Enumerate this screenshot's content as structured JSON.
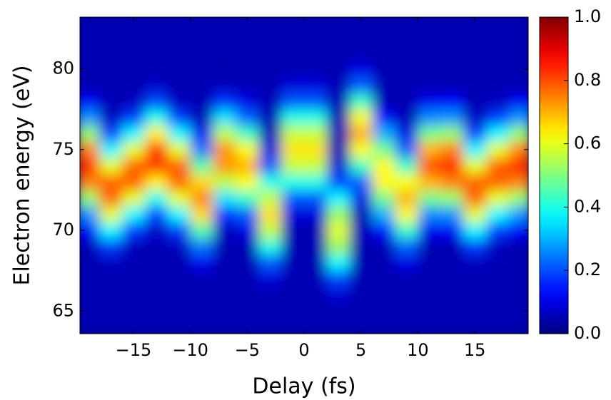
{
  "chart_data": {
    "type": "heatmap",
    "xlabel": "Delay (fs)",
    "ylabel": "Electron energy (eV)",
    "colormap": "jet",
    "x": [
      -19,
      -17,
      -15,
      -13,
      -11,
      -9,
      -7,
      -5,
      -3,
      -1,
      1,
      3,
      5,
      7,
      9,
      11,
      13,
      15,
      17,
      19
    ],
    "y": [
      64,
      65,
      66,
      67,
      68,
      69,
      70,
      71,
      72,
      73,
      74,
      75,
      76,
      77,
      78,
      79,
      80,
      81,
      82,
      83
    ],
    "values": [
      [
        0.05,
        0.05,
        0.05,
        0.05,
        0.05,
        0.05,
        0.05,
        0.05,
        0.05,
        0.05,
        0.05,
        0.05,
        0.05,
        0.05,
        0.05,
        0.05,
        0.05,
        0.05,
        0.05,
        0.05
      ],
      [
        0.05,
        0.05,
        0.05,
        0.05,
        0.05,
        0.05,
        0.05,
        0.05,
        0.05,
        0.05,
        0.05,
        0.05,
        0.05,
        0.05,
        0.05,
        0.05,
        0.05,
        0.05,
        0.05,
        0.05
      ],
      [
        0.05,
        0.05,
        0.05,
        0.05,
        0.05,
        0.05,
        0.05,
        0.05,
        0.05,
        0.05,
        0.05,
        0.08,
        0.05,
        0.05,
        0.05,
        0.05,
        0.05,
        0.05,
        0.05,
        0.05
      ],
      [
        0.05,
        0.05,
        0.05,
        0.05,
        0.05,
        0.05,
        0.05,
        0.05,
        0.09,
        0.05,
        0.05,
        0.19,
        0.05,
        0.05,
        0.05,
        0.05,
        0.05,
        0.05,
        0.05,
        0.05
      ],
      [
        0.05,
        0.06,
        0.05,
        0.05,
        0.05,
        0.11,
        0.05,
        0.05,
        0.21,
        0.05,
        0.05,
        0.37,
        0.05,
        0.05,
        0.1,
        0.05,
        0.05,
        0.06,
        0.05,
        0.05
      ],
      [
        0.05,
        0.18,
        0.06,
        0.05,
        0.06,
        0.24,
        0.05,
        0.05,
        0.4,
        0.05,
        0.05,
        0.53,
        0.05,
        0.05,
        0.22,
        0.05,
        0.05,
        0.18,
        0.06,
        0.05
      ],
      [
        0.12,
        0.37,
        0.18,
        0.07,
        0.18,
        0.46,
        0.06,
        0.1,
        0.57,
        0.05,
        0.05,
        0.6,
        0.05,
        0.14,
        0.43,
        0.11,
        0.12,
        0.37,
        0.18,
        0.12
      ],
      [
        0.27,
        0.6,
        0.37,
        0.19,
        0.37,
        0.66,
        0.17,
        0.22,
        0.65,
        0.09,
        0.09,
        0.53,
        0.05,
        0.3,
        0.62,
        0.26,
        0.27,
        0.6,
        0.37,
        0.27
      ],
      [
        0.52,
        0.78,
        0.6,
        0.39,
        0.6,
        0.75,
        0.35,
        0.43,
        0.57,
        0.21,
        0.21,
        0.37,
        0.1,
        0.49,
        0.7,
        0.49,
        0.52,
        0.78,
        0.6,
        0.52
      ],
      [
        0.75,
        0.78,
        0.78,
        0.64,
        0.78,
        0.66,
        0.56,
        0.62,
        0.4,
        0.4,
        0.4,
        0.19,
        0.22,
        0.63,
        0.62,
        0.7,
        0.75,
        0.78,
        0.78,
        0.75
      ],
      [
        0.85,
        0.6,
        0.78,
        0.82,
        0.78,
        0.46,
        0.73,
        0.7,
        0.21,
        0.57,
        0.57,
        0.08,
        0.43,
        0.63,
        0.43,
        0.8,
        0.85,
        0.6,
        0.78,
        0.85
      ],
      [
        0.75,
        0.37,
        0.6,
        0.82,
        0.6,
        0.24,
        0.73,
        0.62,
        0.09,
        0.65,
        0.65,
        0.05,
        0.62,
        0.49,
        0.22,
        0.7,
        0.75,
        0.37,
        0.6,
        0.75
      ],
      [
        0.52,
        0.18,
        0.37,
        0.64,
        0.37,
        0.11,
        0.56,
        0.43,
        0.05,
        0.57,
        0.57,
        0.05,
        0.7,
        0.3,
        0.1,
        0.49,
        0.52,
        0.18,
        0.37,
        0.52
      ],
      [
        0.27,
        0.06,
        0.18,
        0.39,
        0.18,
        0.05,
        0.35,
        0.22,
        0.05,
        0.4,
        0.4,
        0.05,
        0.62,
        0.14,
        0.05,
        0.26,
        0.27,
        0.06,
        0.18,
        0.27
      ],
      [
        0.12,
        0.05,
        0.06,
        0.19,
        0.06,
        0.05,
        0.17,
        0.1,
        0.05,
        0.21,
        0.21,
        0.05,
        0.43,
        0.05,
        0.05,
        0.11,
        0.12,
        0.05,
        0.06,
        0.12
      ],
      [
        0.05,
        0.05,
        0.05,
        0.07,
        0.05,
        0.05,
        0.06,
        0.05,
        0.05,
        0.09,
        0.09,
        0.05,
        0.22,
        0.05,
        0.05,
        0.05,
        0.05,
        0.05,
        0.05,
        0.05
      ],
      [
        0.05,
        0.05,
        0.05,
        0.05,
        0.05,
        0.05,
        0.05,
        0.05,
        0.05,
        0.05,
        0.05,
        0.05,
        0.1,
        0.05,
        0.05,
        0.05,
        0.05,
        0.05,
        0.05,
        0.05
      ],
      [
        0.05,
        0.05,
        0.05,
        0.05,
        0.05,
        0.05,
        0.05,
        0.05,
        0.05,
        0.05,
        0.05,
        0.05,
        0.05,
        0.05,
        0.05,
        0.05,
        0.05,
        0.05,
        0.05,
        0.05
      ],
      [
        0.05,
        0.05,
        0.05,
        0.05,
        0.05,
        0.05,
        0.05,
        0.05,
        0.05,
        0.05,
        0.05,
        0.05,
        0.05,
        0.05,
        0.05,
        0.05,
        0.05,
        0.05,
        0.05,
        0.05
      ],
      [
        0.05,
        0.05,
        0.05,
        0.05,
        0.05,
        0.05,
        0.05,
        0.05,
        0.05,
        0.05,
        0.05,
        0.05,
        0.05,
        0.05,
        0.05,
        0.05,
        0.05,
        0.05,
        0.05,
        0.05
      ]
    ],
    "xlim": [
      -19.7,
      19.7
    ],
    "xticks": [
      {
        "value": -15,
        "label": "−15"
      },
      {
        "value": -10,
        "label": "−10"
      },
      {
        "value": -5,
        "label": "−5"
      },
      0,
      5,
      10,
      15
    ],
    "ylim": [
      63.6,
      83.2
    ],
    "yticks": [
      65,
      70,
      75,
      80
    ],
    "zlim": [
      0,
      1
    ],
    "zticks": [
      {
        "value": 0,
        "label": "0.0"
      },
      0.2,
      0.4,
      0.6,
      0.8,
      {
        "value": 1,
        "label": "1.0"
      }
    ]
  }
}
